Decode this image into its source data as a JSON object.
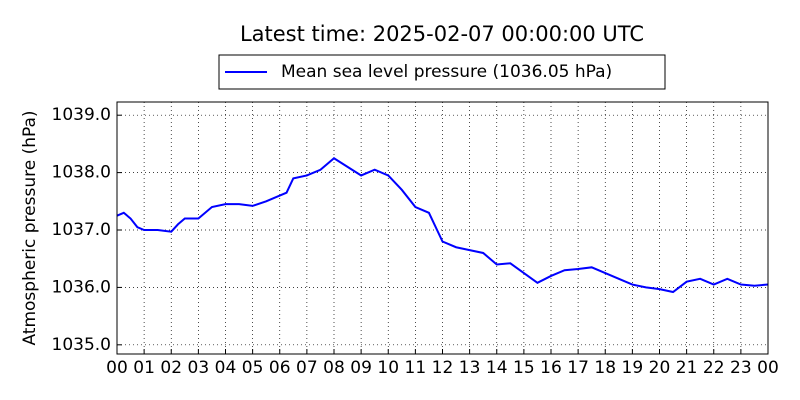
{
  "chart_data": {
    "type": "line",
    "title": "Latest time: 2025-02-07 00:00:00 UTC",
    "y_label": "Atmospheric pressure (hPa)",
    "x": [
      0,
      0.25,
      0.5,
      0.75,
      1,
      1.5,
      2,
      2.25,
      2.5,
      3,
      3.5,
      4,
      4.5,
      5,
      5.5,
      6,
      6.25,
      6.5,
      7,
      7.5,
      8,
      8.5,
      9,
      9.5,
      10,
      10.5,
      11,
      11.5,
      12,
      12.5,
      13,
      13.5,
      14,
      14.5,
      15,
      15.5,
      16,
      16.5,
      17,
      17.5,
      18,
      18.5,
      19,
      19.5,
      20,
      20.5,
      21,
      21.5,
      22,
      22.5,
      23,
      23.5,
      24
    ],
    "series": [
      {
        "name": "Mean sea level pressure (1036.05 hPa)",
        "color": "#0000ff",
        "values": [
          1037.25,
          1037.3,
          1037.2,
          1037.05,
          1037.0,
          1037.0,
          1036.97,
          1037.1,
          1037.2,
          1037.2,
          1037.4,
          1037.45,
          1037.45,
          1037.42,
          1037.5,
          1037.6,
          1037.65,
          1037.9,
          1037.95,
          1038.05,
          1038.25,
          1038.1,
          1037.95,
          1038.05,
          1037.95,
          1037.7,
          1037.4,
          1037.3,
          1036.8,
          1036.7,
          1036.65,
          1036.6,
          1036.4,
          1036.42,
          1036.25,
          1036.08,
          1036.2,
          1036.3,
          1036.32,
          1036.35,
          1036.25,
          1036.15,
          1036.05,
          1036.0,
          1035.97,
          1035.92,
          1036.1,
          1036.15,
          1036.05,
          1036.15,
          1036.05,
          1036.03,
          1036.05
        ]
      }
    ],
    "xlim": [
      0,
      24
    ],
    "xticks": [
      {
        "value": 0,
        "label": "00"
      },
      {
        "value": 1,
        "label": "01"
      },
      {
        "value": 2,
        "label": "02"
      },
      {
        "value": 3,
        "label": "03"
      },
      {
        "value": 4,
        "label": "04"
      },
      {
        "value": 5,
        "label": "05"
      },
      {
        "value": 6,
        "label": "06"
      },
      {
        "value": 7,
        "label": "07"
      },
      {
        "value": 8,
        "label": "08"
      },
      {
        "value": 9,
        "label": "09"
      },
      {
        "value": 10,
        "label": "10"
      },
      {
        "value": 11,
        "label": "11"
      },
      {
        "value": 12,
        "label": "12"
      },
      {
        "value": 13,
        "label": "13"
      },
      {
        "value": 14,
        "label": "14"
      },
      {
        "value": 15,
        "label": "15"
      },
      {
        "value": 16,
        "label": "16"
      },
      {
        "value": 17,
        "label": "17"
      },
      {
        "value": 18,
        "label": "18"
      },
      {
        "value": 19,
        "label": "19"
      },
      {
        "value": 20,
        "label": "20"
      },
      {
        "value": 21,
        "label": "21"
      },
      {
        "value": 22,
        "label": "22"
      },
      {
        "value": 23,
        "label": "23"
      },
      {
        "value": 24,
        "label": "00"
      }
    ],
    "ylim": [
      1034.84,
      1039.23
    ],
    "yticks": [
      {
        "value": 1035,
        "label": "1035.0"
      },
      {
        "value": 1036,
        "label": "1036.0"
      },
      {
        "value": 1037,
        "label": "1037.0"
      },
      {
        "value": 1038,
        "label": "1038.0"
      },
      {
        "value": 1039,
        "label": "1039.0"
      }
    ],
    "grid": true
  }
}
